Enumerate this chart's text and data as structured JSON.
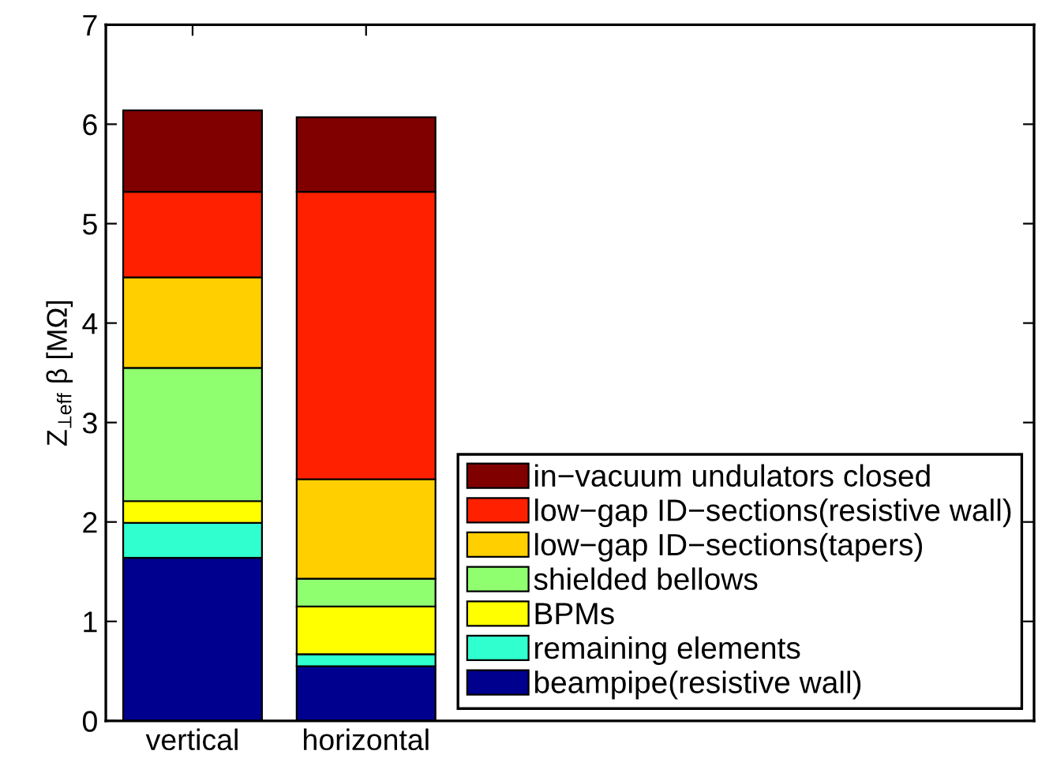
{
  "chart_data": {
    "type": "bar",
    "stacked": true,
    "ylabel": "Z$_{⊥eff}$ β [MΩ]",
    "categories": [
      "vertical",
      "horizontal"
    ],
    "series": [
      {
        "name": "beampipe(resistive wall)",
        "color": "#00008f",
        "values": [
          1.64,
          0.55
        ]
      },
      {
        "name": "remaining elements",
        "color": "#30ffcf",
        "values": [
          0.35,
          0.12
        ]
      },
      {
        "name": "BPMs",
        "color": "#ffff00",
        "values": [
          0.22,
          0.48
        ]
      },
      {
        "name": "shielded bellows",
        "color": "#8fff70",
        "values": [
          1.34,
          0.28
        ]
      },
      {
        "name": "low−gap ID−sections(tapers)",
        "color": "#ffcf00",
        "values": [
          0.91,
          1.0
        ]
      },
      {
        "name": "low−gap ID−sections(resistive wall)",
        "color": "#ff2000",
        "values": [
          0.86,
          2.89
        ]
      },
      {
        "name": "in−vacuum undulators closed",
        "color": "#800000",
        "values": [
          0.82,
          0.75
        ]
      }
    ],
    "ylim": [
      0,
      7
    ],
    "yticks": [
      0,
      1,
      2,
      3,
      4,
      5,
      6,
      7
    ],
    "grid": false,
    "legend": "bottom right"
  }
}
